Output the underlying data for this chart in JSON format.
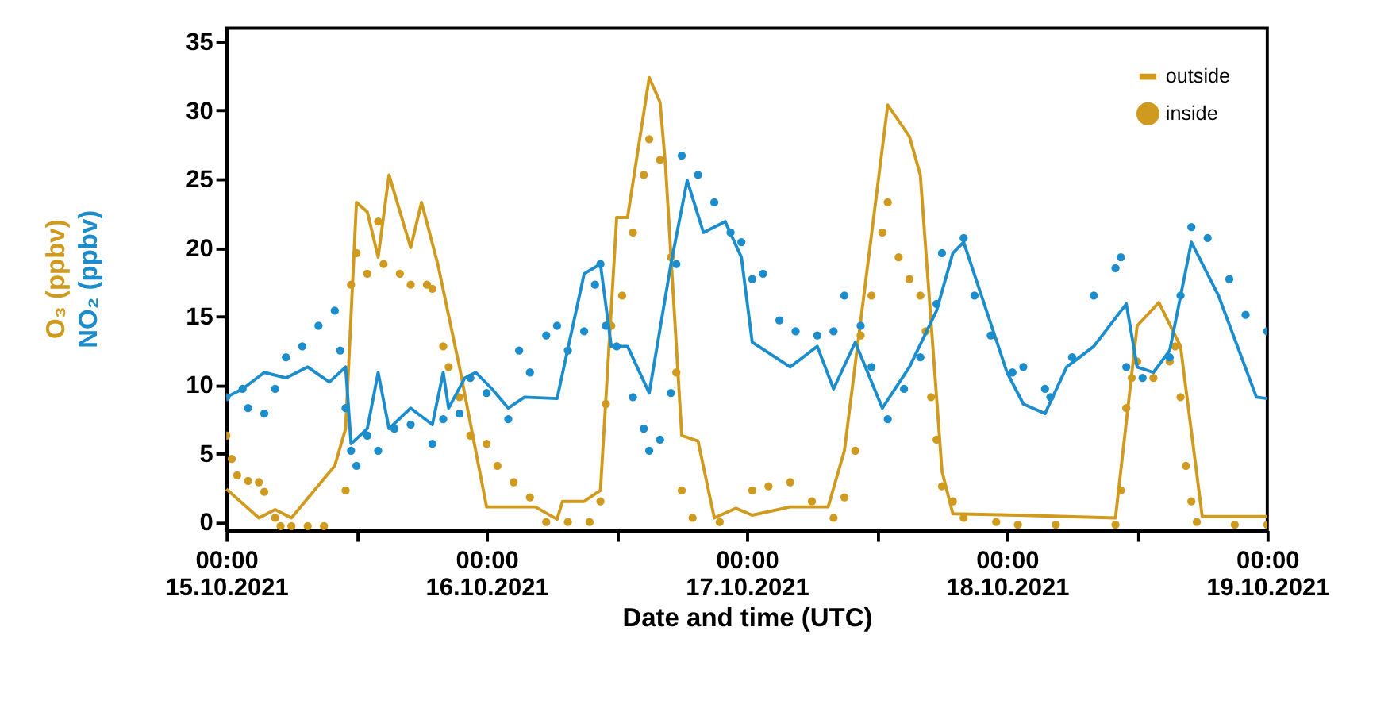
{
  "chart_data": {
    "type": "line",
    "xlabel": "Date and time (UTC)",
    "ylabel": [
      "O₃ (ppbv)",
      "NO₂ (ppbv)"
    ],
    "xlim": [
      "2021-10-15T00:00",
      "2021-10-19T00:00"
    ],
    "xticks": [
      {
        "value": "2021-10-15T00:00",
        "label": "00:00 15.10.2021"
      },
      {
        "value": "2021-10-15T12:00",
        "label": null
      },
      {
        "value": "2021-10-16T00:00",
        "label": "00:00 16.10.2021"
      },
      {
        "value": "2021-10-16T12:00",
        "label": null
      },
      {
        "value": "2021-10-17T00:00",
        "label": "00:00 17.10.2021"
      },
      {
        "value": "2021-10-17T12:00",
        "label": null
      },
      {
        "value": "2021-10-18T00:00",
        "label": "00:00 18.10.2021"
      },
      {
        "value": "2021-10-18T12:00",
        "label": null
      },
      {
        "value": "2021-10-19T00:00",
        "label": "00:00 19.10.2021"
      }
    ],
    "ylim": [
      -0.6,
      36
    ],
    "yticks": [
      0,
      5,
      10,
      15,
      20,
      25,
      30,
      35
    ],
    "grid": false,
    "legend": "top right",
    "series": [
      {
        "name": "outside",
        "color": "#d09a1e",
        "x": [
          "2021-10-15T00:00",
          "2021-10-15T03:00",
          "2021-10-15T04:30",
          "2021-10-15T06:00",
          "2021-10-15T10:00",
          "2021-10-15T11:00",
          "2021-10-15T12:00",
          "2021-10-15T13:00",
          "2021-10-15T14:00",
          "2021-10-15T15:00",
          "2021-10-15T17:00",
          "2021-10-15T18:00",
          "2021-10-15T19:30",
          "2021-10-15T21:30",
          "2021-10-16T00:00",
          "2021-10-16T04:30",
          "2021-10-16T06:30",
          "2021-10-16T07:00",
          "2021-10-16T09:00",
          "2021-10-16T10:30",
          "2021-10-16T12:00",
          "2021-10-16T13:00",
          "2021-10-16T15:00",
          "2021-10-16T16:00",
          "2021-10-16T16:30",
          "2021-10-16T18:00",
          "2021-10-16T19:30",
          "2021-10-16T21:00",
          "2021-10-16T23:00",
          "2021-10-17T00:30",
          "2021-10-17T04:00",
          "2021-10-17T07:30",
          "2021-10-17T09:00",
          "2021-10-17T13:00",
          "2021-10-17T15:00",
          "2021-10-17T16:00",
          "2021-10-17T18:00",
          "2021-10-17T19:00",
          "2021-10-18T01:00",
          "2021-10-18T10:00",
          "2021-10-18T12:00",
          "2021-10-18T14:00",
          "2021-10-18T16:00",
          "2021-10-18T18:00",
          "2021-10-19T00:00"
        ],
        "values": [
          2.4,
          0.3,
          0.9,
          0.3,
          4.1,
          6.8,
          23.3,
          22.6,
          19.3,
          25.3,
          20,
          23.3,
          18.8,
          11.3,
          1.1,
          1.1,
          0.2,
          1.5,
          1.5,
          2.3,
          22.2,
          22.2,
          32.4,
          30.6,
          26,
          6.3,
          5.9,
          0.3,
          1,
          0.5,
          1.1,
          1.1,
          5.2,
          30.4,
          28.1,
          25.3,
          3.7,
          0.6,
          0.5,
          0.3,
          14.3,
          16,
          12.8,
          0.4,
          0.4
        ]
      },
      {
        "name": "inside",
        "type": "scatter",
        "color": "#d09a1e",
        "x": [
          "2021-10-15T00:00",
          "2021-10-15T00:30",
          "2021-10-15T01:00",
          "2021-10-15T02:00",
          "2021-10-15T03:00",
          "2021-10-15T03:30",
          "2021-10-15T04:30",
          "2021-10-15T05:00",
          "2021-10-15T06:00",
          "2021-10-15T07:30",
          "2021-10-15T09:00",
          "2021-10-15T11:00",
          "2021-10-15T11:30",
          "2021-10-15T12:00",
          "2021-10-15T13:00",
          "2021-10-15T14:00",
          "2021-10-15T14:30",
          "2021-10-15T16:00",
          "2021-10-15T17:00",
          "2021-10-15T18:30",
          "2021-10-15T19:00",
          "2021-10-15T20:00",
          "2021-10-15T20:30",
          "2021-10-15T21:30",
          "2021-10-15T22:30",
          "2021-10-16T00:00",
          "2021-10-16T01:00",
          "2021-10-16T02:30",
          "2021-10-16T04:00",
          "2021-10-16T05:30",
          "2021-10-16T07:30",
          "2021-10-16T09:30",
          "2021-10-16T10:30",
          "2021-10-16T11:00",
          "2021-10-16T11:30",
          "2021-10-16T12:30",
          "2021-10-16T13:30",
          "2021-10-16T14:30",
          "2021-10-16T15:00",
          "2021-10-16T16:00",
          "2021-10-16T17:00",
          "2021-10-16T17:30",
          "2021-10-16T18:00",
          "2021-10-16T19:00",
          "2021-10-16T21:30",
          "2021-10-17T00:30",
          "2021-10-17T02:00",
          "2021-10-17T04:00",
          "2021-10-17T06:00",
          "2021-10-17T08:00",
          "2021-10-17T09:00",
          "2021-10-17T10:00",
          "2021-10-17T10:30",
          "2021-10-17T11:30",
          "2021-10-17T12:30",
          "2021-10-17T13:00",
          "2021-10-17T14:00",
          "2021-10-17T15:00",
          "2021-10-17T16:00",
          "2021-10-17T16:30",
          "2021-10-17T17:00",
          "2021-10-17T17:30",
          "2021-10-17T18:00",
          "2021-10-17T19:00",
          "2021-10-17T20:00",
          "2021-10-17T23:00",
          "2021-10-18T01:00",
          "2021-10-18T04:30",
          "2021-10-18T10:00",
          "2021-10-18T10:30",
          "2021-10-18T11:00",
          "2021-10-18T11:30",
          "2021-10-18T12:00",
          "2021-10-18T13:30",
          "2021-10-18T15:00",
          "2021-10-18T15:30",
          "2021-10-18T16:00",
          "2021-10-18T16:30",
          "2021-10-18T17:00",
          "2021-10-18T17:30",
          "2021-10-18T21:00",
          "2021-10-19T00:00"
        ],
        "values": [
          6.3,
          4.6,
          3.4,
          3,
          2.9,
          2.2,
          0.3,
          -0.3,
          -0.3,
          -0.3,
          -0.3,
          2.3,
          17.3,
          19.6,
          18.1,
          21.9,
          18.8,
          18.1,
          17.3,
          17.3,
          17,
          12.8,
          11.3,
          9.1,
          6.3,
          5.7,
          4.1,
          2.9,
          1.8,
          0,
          0,
          0,
          1.5,
          8.6,
          14.3,
          16.5,
          21.1,
          25.3,
          27.9,
          26.4,
          19.3,
          10.9,
          2.3,
          0.3,
          0,
          2.3,
          2.6,
          2.9,
          1.5,
          0.3,
          1.8,
          5.2,
          13.6,
          16.5,
          21.1,
          23.3,
          19.3,
          17.7,
          16.5,
          13.9,
          9.1,
          6,
          2.6,
          1.5,
          0.3,
          0,
          -0.2,
          -0.2,
          -0.2,
          2.3,
          8.3,
          10.5,
          11.7,
          10.5,
          11.7,
          12.8,
          9.1,
          4.1,
          1.5,
          0,
          -0.2,
          -0.2
        ]
      },
      {
        "color": "#1b8ccc",
        "x": [
          "2021-10-15T00:00",
          "2021-10-15T01:30",
          "2021-10-15T03:30",
          "2021-10-15T05:30",
          "2021-10-15T07:30",
          "2021-10-15T09:30",
          "2021-10-15T11:00",
          "2021-10-15T11:30",
          "2021-10-15T13:00",
          "2021-10-15T14:00",
          "2021-10-15T15:00",
          "2021-10-15T17:00",
          "2021-10-15T19:00",
          "2021-10-15T20:00",
          "2021-10-15T20:30",
          "2021-10-15T22:00",
          "2021-10-15T23:00",
          "2021-10-16T00:30",
          "2021-10-16T02:00",
          "2021-10-16T03:30",
          "2021-10-16T06:30",
          "2021-10-16T09:00",
          "2021-10-16T10:30",
          "2021-10-16T11:30",
          "2021-10-16T13:00",
          "2021-10-16T15:00",
          "2021-10-16T17:00",
          "2021-10-16T18:30",
          "2021-10-16T20:00",
          "2021-10-16T22:00",
          "2021-10-16T23:30",
          "2021-10-17T00:30",
          "2021-10-17T04:00",
          "2021-10-17T06:30",
          "2021-10-17T08:00",
          "2021-10-17T10:00",
          "2021-10-17T12:30",
          "2021-10-17T15:00",
          "2021-10-17T17:30",
          "2021-10-17T19:00",
          "2021-10-17T20:00",
          "2021-10-18T00:00",
          "2021-10-18T01:30",
          "2021-10-18T03:30",
          "2021-10-18T05:30",
          "2021-10-18T08:00",
          "2021-10-18T11:00",
          "2021-10-18T12:00",
          "2021-10-18T13:30",
          "2021-10-18T15:00",
          "2021-10-18T17:00",
          "2021-10-18T19:30",
          "2021-10-18T23:00",
          "2021-10-19T00:00"
        ],
        "values": [
          9.1,
          9.7,
          10.9,
          10.5,
          11.3,
          10.2,
          11.3,
          5.7,
          6.8,
          10.9,
          6.8,
          8.3,
          7.1,
          10.9,
          8.3,
          10.5,
          10.9,
          9.7,
          8.3,
          9.1,
          9,
          18.1,
          18.8,
          12.8,
          12.8,
          9.4,
          18.8,
          24.9,
          21.1,
          21.9,
          19.3,
          13.1,
          11.3,
          12.8,
          9.7,
          13.1,
          8.3,
          11.3,
          15.4,
          19.6,
          20.4,
          10.9,
          8.6,
          7.9,
          11.3,
          12.8,
          15.9,
          11.3,
          10.9,
          12.5,
          20.4,
          16.5,
          9.1,
          9
        ]
      },
      {
        "type": "scatter",
        "color": "#1b8ccc",
        "x": [
          "2021-10-15T00:00",
          "2021-10-15T01:30",
          "2021-10-15T02:00",
          "2021-10-15T03:30",
          "2021-10-15T04:30",
          "2021-10-15T05:30",
          "2021-10-15T07:00",
          "2021-10-15T08:30",
          "2021-10-15T10:00",
          "2021-10-15T10:30",
          "2021-10-15T11:00",
          "2021-10-15T11:30",
          "2021-10-15T12:00",
          "2021-10-15T13:00",
          "2021-10-15T14:00",
          "2021-10-15T15:30",
          "2021-10-15T17:00",
          "2021-10-15T19:00",
          "2021-10-15T20:00",
          "2021-10-15T21:30",
          "2021-10-15T22:30",
          "2021-10-16T00:00",
          "2021-10-16T02:00",
          "2021-10-16T03:00",
          "2021-10-16T04:00",
          "2021-10-16T05:30",
          "2021-10-16T06:30",
          "2021-10-16T07:30",
          "2021-10-16T09:00",
          "2021-10-16T10:00",
          "2021-10-16T10:30",
          "2021-10-16T11:00",
          "2021-10-16T12:00",
          "2021-10-16T13:30",
          "2021-10-16T14:30",
          "2021-10-16T15:00",
          "2021-10-16T16:00",
          "2021-10-16T17:00",
          "2021-10-16T17:30",
          "2021-10-16T18:00",
          "2021-10-16T19:30",
          "2021-10-16T21:00",
          "2021-10-16T22:30",
          "2021-10-16T23:30",
          "2021-10-17T00:30",
          "2021-10-17T01:30",
          "2021-10-17T03:00",
          "2021-10-17T04:30",
          "2021-10-17T06:30",
          "2021-10-17T08:00",
          "2021-10-17T09:00",
          "2021-10-17T10:30",
          "2021-10-17T11:30",
          "2021-10-17T13:00",
          "2021-10-17T14:30",
          "2021-10-17T16:00",
          "2021-10-17T17:30",
          "2021-10-17T18:00",
          "2021-10-17T20:00",
          "2021-10-17T21:00",
          "2021-10-17T22:30",
          "2021-10-18T00:30",
          "2021-10-18T01:30",
          "2021-10-18T03:30",
          "2021-10-18T04:00",
          "2021-10-18T06:00",
          "2021-10-18T08:00",
          "2021-10-18T10:00",
          "2021-10-18T10:30",
          "2021-10-18T11:00",
          "2021-10-18T12:30",
          "2021-10-18T15:00",
          "2021-10-18T16:00",
          "2021-10-18T17:00",
          "2021-10-18T18:30",
          "2021-10-18T20:30",
          "2021-10-18T22:00",
          "2021-10-19T00:00"
        ],
        "values": [
          9.1,
          9.7,
          8.3,
          7.9,
          9.7,
          12,
          12.8,
          14.3,
          15.4,
          12.5,
          8.3,
          5.2,
          4.1,
          6.3,
          5.2,
          6.8,
          7.1,
          5.7,
          7.5,
          7.9,
          10.5,
          9.4,
          7.5,
          12.5,
          10.9,
          13.6,
          14.3,
          12.5,
          13.9,
          17.3,
          18.8,
          14.3,
          12.8,
          9.1,
          6.8,
          5.2,
          6,
          9.4,
          18.8,
          26.7,
          25.3,
          23.3,
          21.1,
          20.4,
          17.7,
          18.1,
          14.7,
          13.9,
          13.6,
          13.9,
          16.5,
          14.3,
          11.3,
          7.5,
          9.7,
          12,
          15.9,
          19.6,
          20.7,
          16.5,
          13.6,
          10.9,
          11.3,
          9.7,
          9.1,
          12,
          16.5,
          18.5,
          19.3,
          11.3,
          10.5,
          12,
          16.5,
          21.5,
          20.7,
          17.7,
          15.1,
          13.9
        ]
      }
    ]
  }
}
